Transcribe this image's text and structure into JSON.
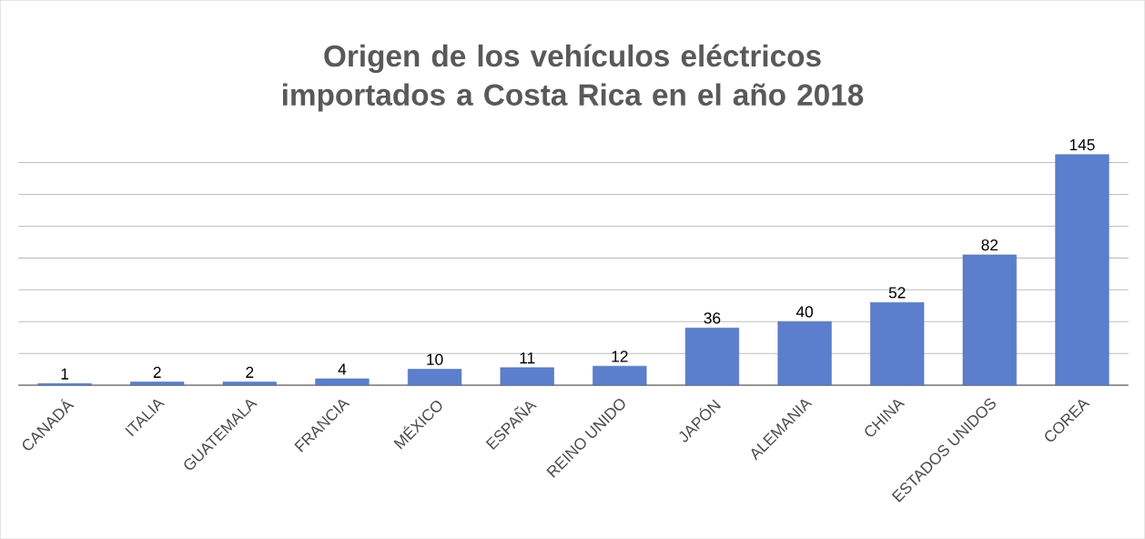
{
  "chart_data": {
    "type": "bar",
    "title": "Origen de los vehículos eléctricos importados a Costa Rica en el año 2018",
    "categories": [
      "CANADÁ",
      "ITALIA",
      "GUATEMALA",
      "FRANCIA",
      "MÉXICO",
      "ESPAÑA",
      "REINO UNIDO",
      "JAPÓN",
      "ALEMANIA",
      "CHINA",
      "ESTADOS UNIDOS",
      "COREA"
    ],
    "values": [
      1,
      2,
      2,
      4,
      10,
      11,
      12,
      36,
      40,
      52,
      82,
      145
    ],
    "color": "#5b7fcd",
    "grid": "y",
    "tick_labels": "x",
    "data_labels": true
  }
}
